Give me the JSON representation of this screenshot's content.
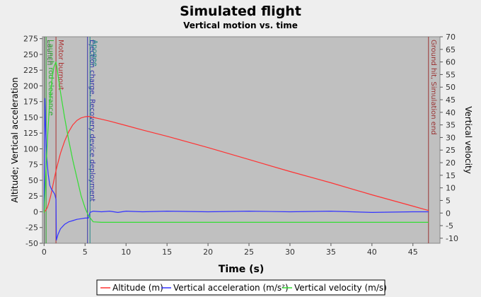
{
  "chart_data": {
    "type": "line",
    "title": "Simulated flight",
    "subtitle": "Vertical motion vs. time",
    "xlabel": "Time (s)",
    "ylabel_left": "Altitude; Vertical acceleration",
    "ylabel_right": "Vertical velocity",
    "xlim": [
      -0.2,
      48.3
    ],
    "ylim_left": [
      -50,
      278
    ],
    "ylim_right": [
      -12,
      70
    ],
    "x_ticks": [
      0,
      5,
      10,
      15,
      20,
      25,
      30,
      35,
      40,
      45
    ],
    "y_ticks_left": [
      -50,
      -25,
      0,
      25,
      50,
      75,
      100,
      125,
      150,
      175,
      200,
      225,
      250,
      275
    ],
    "y_ticks_right": [
      -10,
      -5,
      0,
      5,
      10,
      15,
      20,
      25,
      30,
      35,
      40,
      45,
      50,
      55,
      60,
      65,
      70
    ],
    "grid": false,
    "legend_position": "bottom",
    "background_color": "#c0c0c0",
    "series": [
      {
        "name": "Altitude (m)",
        "axis": "left",
        "color": "#ff3333",
        "x": [
          0,
          0.2,
          0.4,
          0.6,
          0.8,
          1.0,
          1.2,
          1.5,
          2.0,
          2.5,
          3.0,
          3.5,
          4.0,
          4.5,
          5.0,
          5.4,
          6.0,
          7,
          8,
          10,
          12,
          15,
          20,
          25,
          30,
          35,
          40,
          45,
          46.9
        ],
        "y": [
          0,
          2,
          7,
          15,
          25,
          37,
          50,
          68,
          93,
          112,
          127,
          138,
          145,
          149,
          151,
          151.5,
          150,
          147,
          144,
          137,
          130,
          120,
          102,
          83,
          64,
          46,
          27,
          9,
          2
        ]
      },
      {
        "name": "Vertical acceleration (m/s²)",
        "axis": "left",
        "color": "#3333ff",
        "x": [
          0,
          0.1,
          0.2,
          0.3,
          0.5,
          0.7,
          0.9,
          1.1,
          1.3,
          1.45,
          1.5,
          1.7,
          2.0,
          2.5,
          3.0,
          3.5,
          4.0,
          4.5,
          5.0,
          5.4,
          5.6,
          6,
          7,
          8,
          9,
          10,
          12,
          15,
          20,
          25,
          30,
          35,
          40,
          45,
          46.9
        ],
        "y": [
          0,
          180,
          130,
          90,
          60,
          42,
          36,
          32,
          28,
          20,
          -45,
          -36,
          -27,
          -20,
          -16,
          -14,
          -12,
          -11,
          -10,
          -10,
          -1,
          1,
          0,
          1,
          -1,
          1,
          0,
          1,
          0,
          1,
          0,
          1,
          -1,
          0,
          0
        ]
      },
      {
        "name": "Vertical velocity (m/s)",
        "axis": "right",
        "color": "#33dd33",
        "x": [
          0,
          0.2,
          0.4,
          0.6,
          0.8,
          1.0,
          1.2,
          1.45,
          1.6,
          2.0,
          2.5,
          3.0,
          3.5,
          4.0,
          4.5,
          5.0,
          5.4,
          6.0,
          7,
          10,
          20,
          30,
          40,
          46.9
        ],
        "y": [
          0,
          15,
          29,
          40,
          48,
          54,
          58,
          60,
          57,
          48,
          38,
          29,
          21,
          14,
          7,
          2,
          -1,
          -3.5,
          -3.7,
          -3.7,
          -3.7,
          -3.7,
          -3.7,
          -3.7
        ]
      }
    ],
    "events": [
      {
        "x": 0.05,
        "label": "Launch",
        "color": "#555555"
      },
      {
        "x": 0.25,
        "label": "Launch rod clearance",
        "color": "#33aa33"
      },
      {
        "x": 1.45,
        "label": "Motor burnout",
        "color": "#aa3333"
      },
      {
        "x": 5.3,
        "label": "Ejection charge, Recovery device deployment",
        "color": "#3333aa"
      },
      {
        "x": 5.6,
        "label": "Apogee",
        "color": "#228888"
      },
      {
        "x": 46.9,
        "label": "Ground hit, Simulation end",
        "color": "#993333"
      }
    ]
  }
}
